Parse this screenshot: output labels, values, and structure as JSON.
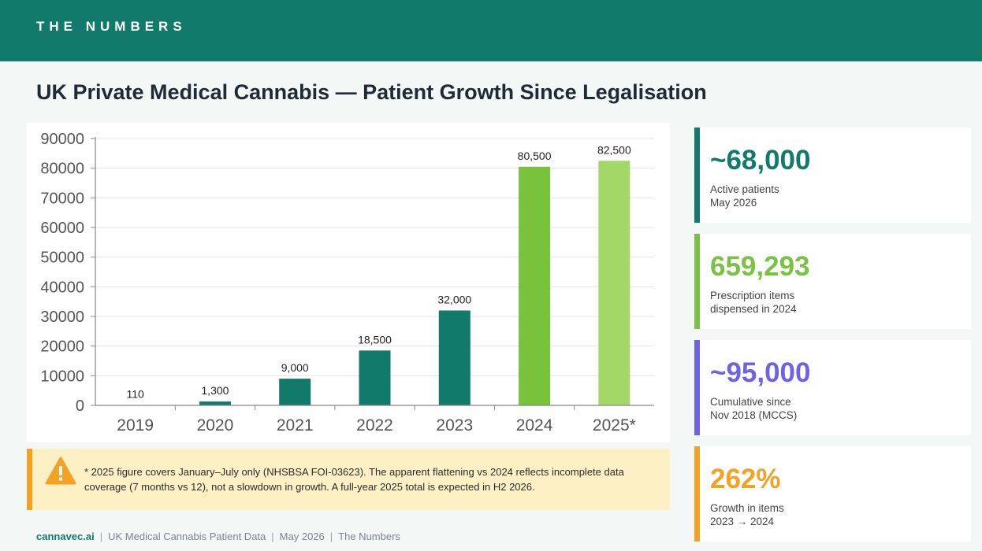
{
  "header": {
    "section_label": "THE NUMBERS"
  },
  "page_title": "UK Private Medical Cannabis — Patient Growth Since Legalisation",
  "colors": {
    "brand": "#127a6b",
    "bar_historic": "#127a6b",
    "bar_2024": "#78c23c",
    "bar_2025": "#a4d866",
    "accent_green": "#7bc143",
    "accent_purple": "#6c63e6",
    "accent_orange": "#f3a224"
  },
  "chart_data": {
    "type": "bar",
    "categories": [
      "2019",
      "2020",
      "2021",
      "2022",
      "2023",
      "2024",
      "2025*"
    ],
    "values": [
      110,
      1300,
      9000,
      18500,
      32000,
      80500,
      82500
    ],
    "data_labels": [
      "110",
      "1,300",
      "9,000",
      "18,500",
      "32,000",
      "80,500",
      "82,500"
    ],
    "y_ticks": [
      "0",
      "10000",
      "20000",
      "30000",
      "40000",
      "50000",
      "60000",
      "70000",
      "80000",
      "90000"
    ],
    "ylim": [
      0,
      90000
    ],
    "grid": true,
    "title": "",
    "xlabel": "",
    "ylabel": ""
  },
  "note": {
    "icon": "warning-icon",
    "line1": "* 2025 figure covers January–July only (NHSBSA FOI-03623). The apparent flattening vs 2024 reflects incomplete data",
    "line2": "coverage (7 months vs 12), not a slowdown in growth. A full-year 2025 total is expected in H2 2026."
  },
  "stats": [
    {
      "value": "~68,000",
      "line1": "Active patients",
      "line2": "May 2026",
      "color": "#127a6b"
    },
    {
      "value": "659,293",
      "line1": "Prescription items",
      "line2": "dispensed in 2024",
      "color": "#7bc143"
    },
    {
      "value": "~95,000",
      "line1": "Cumulative since",
      "line2": "Nov 2018 (MCCS)",
      "color": "#6c63e6"
    },
    {
      "value": "262%",
      "line1": "Growth in items",
      "line2": "2023 → 2024",
      "color": "#f3a224"
    }
  ],
  "footer": {
    "brand": "cannavec.ai",
    "source": "UK Medical Cannabis Patient Data",
    "date": "May 2026",
    "series": "The Numbers"
  }
}
